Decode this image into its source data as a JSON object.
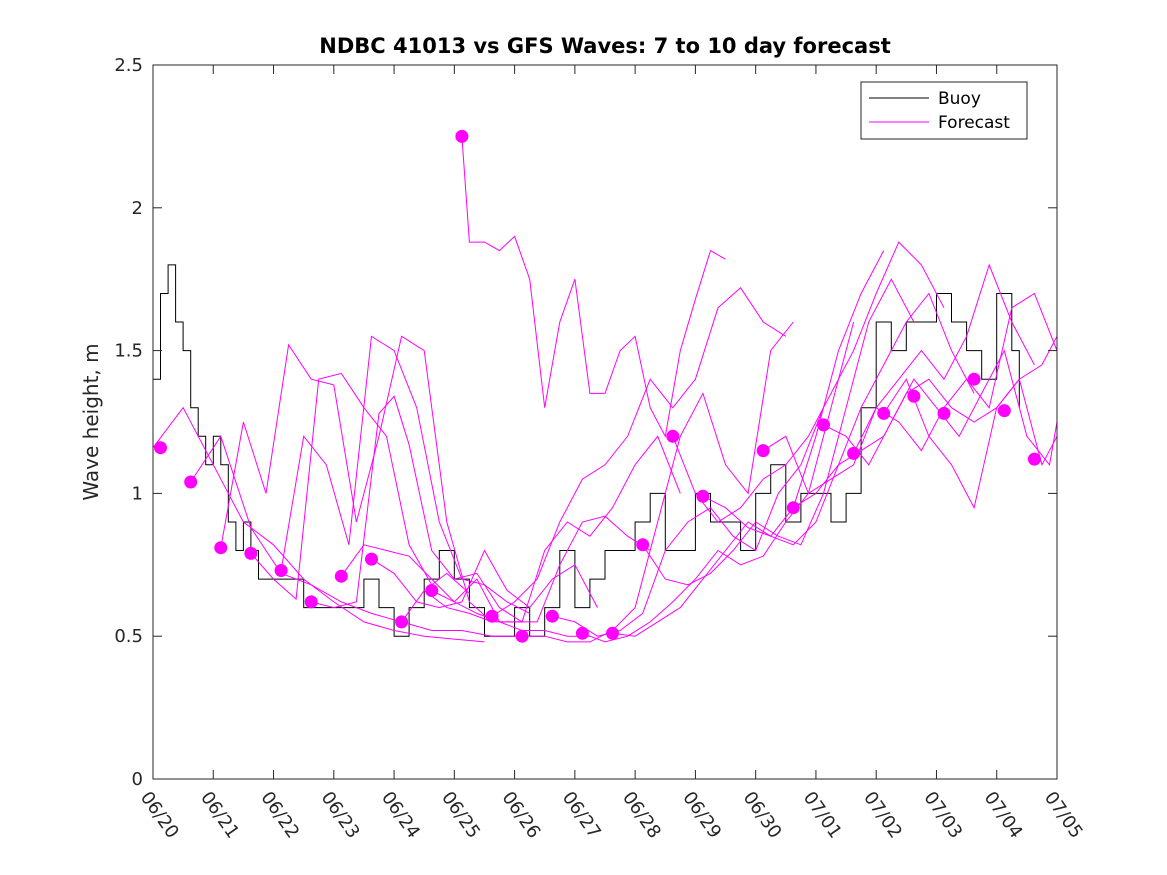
{
  "chart_data": {
    "type": "line",
    "title": "NDBC 41013 vs GFS Waves: 7 to 10 day forecast",
    "xlabel": "",
    "ylabel": "Wave height, m",
    "xlim": [
      "06/20",
      "07/05"
    ],
    "ylim": [
      0,
      2.5
    ],
    "grid": false,
    "legend_position": "top-right",
    "x_tick_labels": [
      "06/20",
      "06/21",
      "06/22",
      "06/23",
      "06/24",
      "06/25",
      "06/26",
      "06/27",
      "06/28",
      "06/29",
      "06/30",
      "07/01",
      "07/02",
      "07/03",
      "07/04",
      "07/05"
    ],
    "y_tick_labels": [
      "0",
      "0.5",
      "1",
      "1.5",
      "2",
      "2.5"
    ],
    "colors": {
      "buoy": "#000000",
      "forecast": "#ff00ff"
    },
    "legend": [
      {
        "label": "Buoy",
        "color": "#000000"
      },
      {
        "label": "Forecast",
        "color": "#ff00ff"
      }
    ],
    "series": [
      {
        "name": "Buoy",
        "kind": "line",
        "x": [
          "06/20 00:00",
          "06/20 03:00",
          "06/20 06:00",
          "06/20 09:00",
          "06/20 12:00",
          "06/20 15:00",
          "06/20 18:00",
          "06/20 21:00",
          "06/21 00:00",
          "06/21 03:00",
          "06/21 06:00",
          "06/21 09:00",
          "06/21 12:00",
          "06/21 15:00",
          "06/21 18:00",
          "06/21 21:00",
          "06/22 00:00",
          "06/22 06:00",
          "06/22 12:00",
          "06/22 18:00",
          "06/23 00:00",
          "06/23 06:00",
          "06/23 12:00",
          "06/23 18:00",
          "06/24 00:00",
          "06/24 06:00",
          "06/24 12:00",
          "06/24 18:00",
          "06/25 00:00",
          "06/25 06:00",
          "06/25 12:00",
          "06/25 18:00",
          "06/26 00:00",
          "06/26 06:00",
          "06/26 12:00",
          "06/26 18:00",
          "06/27 00:00",
          "06/27 06:00",
          "06/27 12:00",
          "06/27 18:00",
          "06/28 00:00",
          "06/28 06:00",
          "06/28 12:00",
          "06/28 18:00",
          "06/29 00:00",
          "06/29 06:00",
          "06/29 12:00",
          "06/29 18:00",
          "06/30 00:00",
          "06/30 06:00",
          "06/30 12:00",
          "06/30 18:00",
          "07/01 00:00",
          "07/01 06:00",
          "07/01 12:00",
          "07/01 18:00",
          "07/02 00:00",
          "07/02 06:00",
          "07/02 12:00",
          "07/02 18:00",
          "07/03 00:00",
          "07/03 06:00",
          "07/03 12:00",
          "07/03 18:00",
          "07/04 00:00",
          "07/04 06:00",
          "07/04 09:00"
        ],
        "y": [
          1.4,
          1.7,
          1.8,
          1.6,
          1.5,
          1.3,
          1.2,
          1.1,
          1.2,
          1.1,
          0.9,
          0.8,
          0.9,
          0.8,
          0.7,
          0.7,
          0.7,
          0.7,
          0.6,
          0.6,
          0.6,
          0.6,
          0.7,
          0.6,
          0.5,
          0.6,
          0.7,
          0.8,
          0.7,
          0.6,
          0.5,
          0.5,
          0.6,
          0.5,
          0.6,
          0.8,
          0.6,
          0.7,
          0.8,
          0.8,
          0.9,
          1.0,
          0.8,
          0.8,
          1.0,
          0.9,
          0.9,
          0.8,
          1.0,
          1.1,
          0.9,
          1.0,
          1.0,
          0.9,
          1.0,
          1.3,
          1.6,
          1.5,
          1.6,
          1.6,
          1.7,
          1.6,
          1.5,
          1.4,
          1.7,
          1.5,
          1.3
        ]
      },
      {
        "name": "Forecast",
        "kind": "line",
        "x": [
          "06/20 00:00",
          "06/20 12:00",
          "06/21 00:00",
          "06/21 12:00",
          "06/22 00:00",
          "06/22 12:00",
          "06/23 00:00",
          "06/23 12:00",
          "06/24 00:00",
          "06/24 12:00",
          "06/25 00:00",
          "06/25 12:00"
        ],
        "y": [
          1.16,
          1.3,
          1.1,
          0.9,
          0.82,
          0.7,
          0.62,
          0.55,
          0.52,
          0.5,
          0.49,
          0.48
        ]
      },
      {
        "name": "Forecast",
        "kind": "line",
        "x": [
          "06/20 15:00",
          "06/21 03:00",
          "06/21 15:00",
          "06/22 03:00",
          "06/22 15:00",
          "06/23 03:00",
          "06/23 15:00",
          "06/24 03:00",
          "06/24 15:00",
          "06/25 03:00",
          "06/25 15:00",
          "06/26 03:00"
        ],
        "y": [
          1.04,
          1.2,
          0.88,
          0.72,
          0.68,
          0.62,
          0.58,
          0.55,
          0.52,
          0.52,
          0.5,
          0.5
        ]
      },
      {
        "name": "Forecast",
        "kind": "line",
        "x": [
          "06/21 03:00",
          "06/21 12:00",
          "06/21 21:00",
          "06/22 06:00",
          "06/22 15:00",
          "06/23 00:00",
          "06/23 09:00",
          "06/23 18:00",
          "06/24 03:00",
          "06/24 12:00",
          "06/24 21:00",
          "06/25 06:00",
          "06/25 15:00"
        ],
        "y": [
          0.81,
          1.25,
          1.0,
          1.52,
          1.4,
          1.38,
          0.9,
          1.2,
          1.55,
          1.5,
          0.9,
          0.62,
          0.55
        ]
      },
      {
        "name": "Forecast",
        "kind": "line",
        "x": [
          "06/21 15:00",
          "06/22 00:00",
          "06/22 09:00",
          "06/22 18:00",
          "06/23 03:00",
          "06/23 12:00",
          "06/23 21:00",
          "06/24 06:00",
          "06/24 15:00",
          "06/24 21:00",
          "06/25 06:00"
        ],
        "y": [
          0.79,
          0.7,
          0.63,
          1.4,
          1.42,
          1.3,
          1.2,
          0.82,
          0.68,
          0.72,
          0.65
        ]
      },
      {
        "name": "Forecast",
        "kind": "line",
        "x": [
          "06/22 03:00",
          "06/22 12:00",
          "06/22 21:00",
          "06/23 06:00",
          "06/23 15:00",
          "06/24 00:00",
          "06/24 09:00",
          "06/24 18:00",
          "06/25 03:00",
          "06/25 12:00",
          "06/25 21:00",
          "06/26 06:00"
        ],
        "y": [
          0.73,
          1.2,
          1.1,
          0.82,
          1.55,
          1.5,
          1.3,
          0.9,
          0.7,
          0.68,
          0.62,
          0.58
        ]
      },
      {
        "name": "Forecast",
        "kind": "line",
        "x": [
          "06/22 15:00",
          "06/23 00:00",
          "06/23 09:00",
          "06/23 18:00",
          "06/24 00:00",
          "06/24 06:00",
          "06/24 15:00",
          "06/25 00:00",
          "06/25 09:00",
          "06/25 18:00",
          "06/26 03:00"
        ],
        "y": [
          0.62,
          0.6,
          0.62,
          1.28,
          1.34,
          1.17,
          0.8,
          0.7,
          0.72,
          0.6,
          0.55
        ]
      },
      {
        "name": "Forecast",
        "kind": "line",
        "x": [
          "06/23 03:00",
          "06/23 12:00",
          "06/23 21:00",
          "06/24 06:00",
          "06/24 15:00",
          "06/25 00:00",
          "06/25 09:00",
          "06/25 18:00",
          "06/26 03:00",
          "06/26 12:00",
          "06/26 21:00",
          "06/27 06:00"
        ],
        "y": [
          0.71,
          0.82,
          0.8,
          0.78,
          0.7,
          0.62,
          0.58,
          0.55,
          0.52,
          0.52,
          0.5,
          0.5
        ]
      },
      {
        "name": "Forecast",
        "kind": "line",
        "x": [
          "06/23 15:00",
          "06/24 00:00",
          "06/24 09:00",
          "06/24 18:00",
          "06/25 03:00",
          "06/25 12:00",
          "06/25 21:00",
          "06/26 06:00",
          "06/26 15:00",
          "06/27 00:00",
          "06/27 09:00"
        ],
        "y": [
          0.77,
          0.72,
          0.62,
          0.6,
          0.62,
          0.8,
          0.66,
          0.6,
          0.7,
          0.75,
          0.6
        ]
      },
      {
        "name": "Forecast",
        "kind": "line",
        "x": [
          "06/24 03:00",
          "06/24 12:00",
          "06/24 21:00",
          "06/25 06:00",
          "06/25 15:00",
          "06/26 00:00",
          "06/26 09:00",
          "06/26 18:00",
          "06/27 03:00",
          "06/27 12:00",
          "06/27 21:00",
          "06/28 06:00"
        ],
        "y": [
          0.55,
          0.66,
          0.6,
          0.58,
          0.55,
          0.55,
          0.55,
          0.75,
          0.9,
          0.92,
          0.85,
          0.8
        ]
      },
      {
        "name": "Forecast",
        "kind": "line",
        "x": [
          "06/24 15:00",
          "06/25 00:00",
          "06/25 09:00",
          "06/25 18:00",
          "06/26 03:00",
          "06/26 12:00",
          "06/26 21:00",
          "06/27 06:00",
          "06/27 15:00",
          "06/28 00:00",
          "06/28 09:00",
          "06/28 18:00"
        ],
        "y": [
          0.66,
          0.62,
          0.7,
          0.55,
          0.55,
          0.8,
          0.9,
          0.85,
          0.95,
          1.1,
          1.2,
          1.0
        ]
      },
      {
        "name": "Forecast",
        "kind": "line",
        "x": [
          "06/25 03:00",
          "06/25 06:00",
          "06/25 12:00",
          "06/25 18:00",
          "06/26 00:00",
          "06/26 06:00",
          "06/26 12:00",
          "06/26 18:00",
          "06/27 00:00",
          "06/27 06:00",
          "06/27 12:00",
          "06/27 18:00",
          "06/28 00:00",
          "06/28 06:00",
          "06/28 12:00",
          "06/28 18:00",
          "06/29 00:00",
          "06/29 06:00",
          "06/29 12:00"
        ],
        "y": [
          2.25,
          1.88,
          1.88,
          1.85,
          1.9,
          1.75,
          1.3,
          1.6,
          1.75,
          1.35,
          1.35,
          1.5,
          1.55,
          1.3,
          1.2,
          1.5,
          1.68,
          1.85,
          1.82
        ]
      },
      {
        "name": "Forecast",
        "kind": "line",
        "x": [
          "06/25 15:00",
          "06/26 00:00",
          "06/26 09:00",
          "06/26 18:00",
          "06/27 03:00",
          "06/27 12:00",
          "06/27 21:00",
          "06/28 06:00",
          "06/28 15:00",
          "06/29 00:00",
          "06/29 09:00",
          "06/29 18:00",
          "06/30 03:00",
          "06/30 12:00"
        ],
        "y": [
          0.57,
          0.62,
          0.7,
          0.9,
          1.05,
          1.1,
          1.2,
          1.4,
          1.3,
          1.4,
          1.65,
          1.72,
          1.6,
          1.55
        ]
      },
      {
        "name": "Forecast",
        "kind": "line",
        "x": [
          "06/26 03:00",
          "06/26 12:00",
          "06/26 21:00",
          "06/27 06:00",
          "06/27 15:00",
          "06/28 00:00",
          "06/28 09:00",
          "06/28 18:00",
          "06/29 03:00",
          "06/29 12:00",
          "06/29 21:00",
          "06/30 06:00",
          "06/30 15:00"
        ],
        "y": [
          0.5,
          0.5,
          0.48,
          0.48,
          0.52,
          0.6,
          0.9,
          1.2,
          1.35,
          1.1,
          1.0,
          1.5,
          1.6
        ]
      },
      {
        "name": "Forecast",
        "kind": "line",
        "x": [
          "06/26 15:00",
          "06/27 00:00",
          "06/27 09:00",
          "06/27 18:00",
          "06/28 03:00",
          "06/28 12:00",
          "06/28 21:00",
          "06/29 06:00",
          "06/29 15:00",
          "06/30 00:00",
          "06/30 09:00",
          "06/30 18:00",
          "07/01 03:00"
        ],
        "y": [
          0.57,
          0.55,
          0.5,
          0.52,
          0.58,
          0.8,
          0.9,
          0.95,
          0.85,
          0.8,
          1.0,
          1.1,
          1.3
        ]
      },
      {
        "name": "Forecast",
        "kind": "line",
        "x": [
          "06/27 03:00",
          "06/27 12:00",
          "06/27 21:00",
          "06/28 06:00",
          "06/28 15:00",
          "06/29 00:00",
          "06/29 09:00",
          "06/29 18:00",
          "06/30 03:00",
          "06/30 12:00",
          "06/30 21:00",
          "07/01 06:00",
          "07/01 15:00"
        ],
        "y": [
          0.51,
          0.48,
          0.5,
          0.55,
          0.62,
          0.7,
          0.8,
          0.75,
          0.78,
          0.9,
          1.0,
          1.3,
          1.6
        ]
      },
      {
        "name": "Forecast",
        "kind": "line",
        "x": [
          "06/27 15:00",
          "06/28 00:00",
          "06/28 09:00",
          "06/28 18:00",
          "06/29 03:00",
          "06/29 12:00",
          "06/29 21:00",
          "06/30 06:00",
          "06/30 15:00",
          "07/01 00:00",
          "07/01 09:00",
          "07/01 18:00",
          "07/02 03:00"
        ],
        "y": [
          0.51,
          0.5,
          0.55,
          0.6,
          0.7,
          0.8,
          0.9,
          0.85,
          0.95,
          1.2,
          1.5,
          1.7,
          1.85
        ]
      },
      {
        "name": "Forecast",
        "kind": "line",
        "x": [
          "06/28 03:00",
          "06/28 12:00",
          "06/28 21:00",
          "06/29 06:00",
          "06/29 15:00",
          "06/30 00:00",
          "06/30 09:00",
          "06/30 18:00",
          "07/01 03:00",
          "07/01 12:00",
          "07/01 21:00",
          "07/02 06:00",
          "07/02 15:00"
        ],
        "y": [
          0.82,
          0.7,
          0.68,
          0.72,
          0.8,
          0.9,
          0.85,
          0.82,
          1.0,
          1.3,
          1.6,
          1.75,
          1.6
        ]
      },
      {
        "name": "Forecast",
        "kind": "line",
        "x": [
          "06/28 15:00",
          "06/29 00:00",
          "06/29 09:00",
          "06/29 18:00",
          "06/30 03:00",
          "06/30 12:00",
          "06/30 21:00",
          "07/01 06:00",
          "07/01 15:00",
          "07/02 00:00",
          "07/02 09:00",
          "07/02 18:00",
          "07/03 03:00"
        ],
        "y": [
          1.2,
          1.0,
          0.9,
          0.95,
          1.05,
          1.1,
          1.2,
          1.35,
          1.5,
          1.7,
          1.88,
          1.8,
          1.65
        ]
      },
      {
        "name": "Forecast",
        "kind": "line",
        "x": [
          "06/29 03:00",
          "06/29 12:00",
          "06/29 21:00",
          "06/30 06:00",
          "06/30 15:00",
          "07/01 00:00",
          "07/01 09:00",
          "07/01 18:00",
          "07/02 03:00",
          "07/02 12:00",
          "07/02 21:00",
          "07/03 06:00",
          "07/03 15:00"
        ],
        "y": [
          0.99,
          0.95,
          0.88,
          0.85,
          0.82,
          0.9,
          1.1,
          1.3,
          1.45,
          1.6,
          1.7,
          1.5,
          1.35
        ]
      },
      {
        "name": "Forecast",
        "kind": "line",
        "x": [
          "06/30 03:00",
          "06/30 12:00",
          "06/30 21:00",
          "07/01 06:00",
          "07/01 15:00",
          "07/02 00:00",
          "07/02 09:00",
          "07/02 18:00",
          "07/03 03:00",
          "07/03 12:00",
          "07/03 21:00",
          "07/04 06:00",
          "07/04 15:00"
        ],
        "y": [
          1.15,
          1.2,
          1.0,
          1.05,
          1.1,
          1.3,
          1.4,
          1.5,
          1.4,
          1.55,
          1.8,
          1.6,
          1.45
        ]
      },
      {
        "name": "Forecast",
        "kind": "line",
        "x": [
          "06/30 15:00",
          "07/01 00:00",
          "07/01 09:00",
          "07/01 18:00",
          "07/02 03:00",
          "07/02 12:00",
          "07/02 21:00",
          "07/03 06:00",
          "07/03 15:00",
          "07/04 00:00",
          "07/04 09:00",
          "07/04 18:00",
          "07/05 00:00"
        ],
        "y": [
          0.95,
          1.0,
          1.1,
          1.15,
          1.2,
          1.35,
          1.4,
          1.3,
          1.25,
          1.3,
          1.4,
          1.45,
          1.55
        ]
      },
      {
        "name": "Forecast",
        "kind": "line",
        "x": [
          "07/01 03:00",
          "07/01 12:00",
          "07/01 21:00",
          "07/02 06:00",
          "07/02 15:00",
          "07/03 00:00",
          "07/03 09:00",
          "07/03 18:00",
          "07/04 03:00",
          "07/04 12:00",
          "07/04 21:00",
          "07/05 00:00"
        ],
        "y": [
          1.24,
          1.2,
          1.1,
          1.25,
          1.4,
          1.3,
          1.2,
          1.35,
          1.5,
          1.2,
          1.1,
          1.25
        ]
      },
      {
        "name": "Forecast",
        "kind": "line",
        "x": [
          "07/01 15:00",
          "07/02 00:00",
          "07/02 09:00",
          "07/02 18:00",
          "07/03 03:00",
          "07/03 12:00",
          "07/03 21:00",
          "07/04 06:00",
          "07/04 15:00",
          "07/05 00:00"
        ],
        "y": [
          1.14,
          1.3,
          1.25,
          1.15,
          1.3,
          1.4,
          1.3,
          1.65,
          1.7,
          1.5
        ]
      },
      {
        "name": "Forecast",
        "kind": "line",
        "x": [
          "07/02 03:00",
          "07/02 12:00",
          "07/02 21:00",
          "07/03 06:00",
          "07/03 15:00",
          "07/04 00:00",
          "07/04 09:00",
          "07/04 18:00",
          "07/05 00:00"
        ],
        "y": [
          1.28,
          1.4,
          1.2,
          1.1,
          0.95,
          1.3,
          1.4,
          1.1,
          1.2
        ]
      },
      {
        "name": "Forecast",
        "kind": "markers",
        "x": [
          "06/20 03:00",
          "06/20 15:00",
          "06/21 03:00",
          "06/21 15:00",
          "06/22 03:00",
          "06/22 15:00",
          "06/23 03:00",
          "06/23 15:00",
          "06/24 03:00",
          "06/24 15:00",
          "06/25 03:00",
          "06/25 15:00",
          "06/26 03:00",
          "06/26 15:00",
          "06/27 03:00",
          "06/27 15:00",
          "06/28 03:00",
          "06/28 15:00",
          "06/29 03:00",
          "06/30 03:00",
          "06/30 15:00",
          "07/01 03:00",
          "07/01 15:00",
          "07/02 03:00",
          "07/02 15:00",
          "07/03 03:00",
          "07/03 15:00",
          "07/04 03:00",
          "07/04 15:00"
        ],
        "y": [
          1.16,
          1.04,
          0.81,
          0.79,
          0.73,
          0.62,
          0.71,
          0.77,
          0.55,
          0.66,
          2.25,
          0.57,
          0.5,
          0.57,
          0.51,
          0.51,
          0.82,
          1.2,
          0.99,
          1.15,
          0.95,
          1.24,
          1.14,
          1.28,
          1.34,
          1.28,
          1.4,
          1.29,
          1.12
        ]
      }
    ]
  }
}
